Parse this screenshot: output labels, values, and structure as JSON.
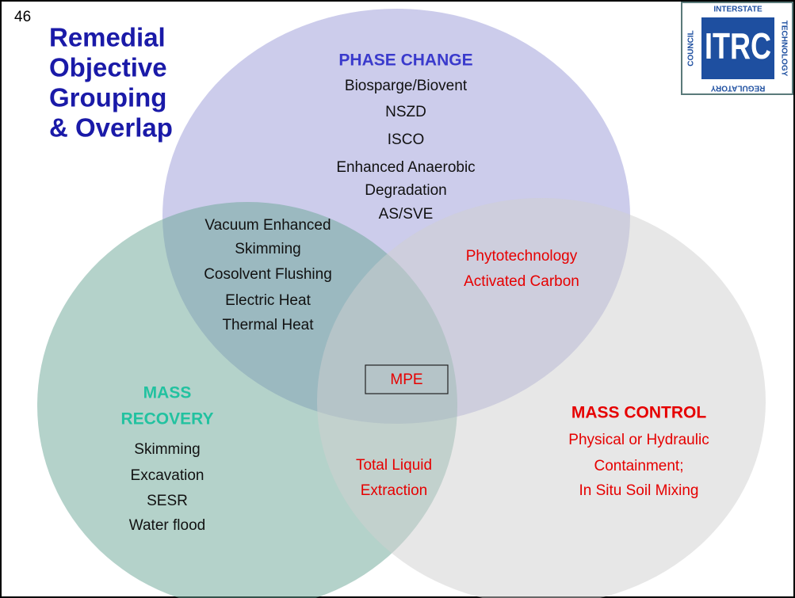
{
  "slide_number": "46",
  "title": [
    "Remedial",
    "Objective",
    "Grouping",
    "& Overlap"
  ],
  "logo": {
    "center": "ITRC",
    "top": "INTERSTATE",
    "right": "TECHNOLOGY",
    "bottom": "REGULATORY",
    "left": "COUNCIL"
  },
  "groups": {
    "phase_change": {
      "label": "PHASE CHANGE",
      "items": [
        "Biosparge/Biovent",
        "NSZD",
        "ISCO",
        "Enhanced Anaerobic",
        "Degradation",
        "AS/SVE"
      ]
    },
    "mass_recovery": {
      "label": [
        "MASS",
        "RECOVERY"
      ],
      "items": [
        "Skimming",
        "Excavation",
        "SESR",
        "Water flood"
      ]
    },
    "mass_control": {
      "label": "MASS CONTROL",
      "items": [
        "Physical or Hydraulic",
        "Containment;",
        "In Situ Soil Mixing"
      ]
    }
  },
  "overlaps": {
    "phase_recovery": [
      "Vacuum Enhanced",
      "Skimming",
      "Cosolvent Flushing",
      "Electric Heat",
      "Thermal Heat"
    ],
    "phase_control": [
      "Phytotechnology",
      "Activated Carbon"
    ],
    "recovery_control": [
      "Total Liquid",
      "Extraction"
    ],
    "all": "MPE"
  }
}
